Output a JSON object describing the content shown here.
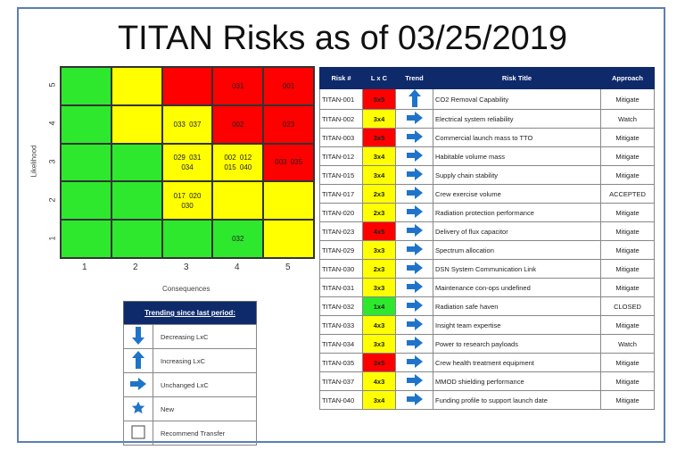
{
  "title": "TITAN Risks as of 03/25/2019",
  "colors": {
    "green": "#2de82d",
    "yellow": "#ffff00",
    "red": "#ff0000",
    "header": "#0e2a6b",
    "arrow": "#1f74c9"
  },
  "matrix": {
    "y_axis_title": "Likelihood",
    "x_axis_title": "Consequences",
    "y_labels": [
      "5",
      "4",
      "3",
      "2",
      "1"
    ],
    "x_labels": [
      "1",
      "2",
      "3",
      "4",
      "5"
    ],
    "rows": [
      [
        {
          "c": "g",
          "t": ""
        },
        {
          "c": "y",
          "t": ""
        },
        {
          "c": "r",
          "t": ""
        },
        {
          "c": "r",
          "t": "031"
        },
        {
          "c": "r",
          "t": "001"
        }
      ],
      [
        {
          "c": "g",
          "t": ""
        },
        {
          "c": "y",
          "t": ""
        },
        {
          "c": "y",
          "t": "033 037"
        },
        {
          "c": "r",
          "t": "002"
        },
        {
          "c": "r",
          "t": "023"
        }
      ],
      [
        {
          "c": "g",
          "t": ""
        },
        {
          "c": "g",
          "t": ""
        },
        {
          "c": "y",
          "t": "029 031 034"
        },
        {
          "c": "y",
          "t": "002 012 015 040"
        },
        {
          "c": "r",
          "t": "003 035"
        }
      ],
      [
        {
          "c": "g",
          "t": ""
        },
        {
          "c": "g",
          "t": ""
        },
        {
          "c": "y",
          "t": "017 020 030"
        },
        {
          "c": "y",
          "t": ""
        },
        {
          "c": "y",
          "t": ""
        }
      ],
      [
        {
          "c": "g",
          "t": ""
        },
        {
          "c": "g",
          "t": ""
        },
        {
          "c": "g",
          "t": ""
        },
        {
          "c": "g",
          "t": "032"
        },
        {
          "c": "y",
          "t": ""
        }
      ]
    ]
  },
  "table": {
    "headers": [
      "Risk #",
      "L x C",
      "Trend",
      "Risk Title",
      "Approach"
    ],
    "rows": [
      {
        "id": "TITAN-001",
        "lxc": "5x5",
        "color": "r",
        "trend": "up",
        "title": "CO2 Removal Capability",
        "approach": "Mitigate"
      },
      {
        "id": "TITAN-002",
        "lxc": "3x4",
        "color": "y",
        "trend": "right",
        "title": "Electrical system reliability",
        "approach": "Watch"
      },
      {
        "id": "TITAN-003",
        "lxc": "3x5",
        "color": "r",
        "trend": "right",
        "title": "Commercial launch mass to TTO",
        "approach": "Mitigate"
      },
      {
        "id": "TITAN-012",
        "lxc": "3x4",
        "color": "y",
        "trend": "right",
        "title": "Habitable volume mass",
        "approach": "Mitigate"
      },
      {
        "id": "TITAN-015",
        "lxc": "3x4",
        "color": "y",
        "trend": "right",
        "title": "Supply chain stability",
        "approach": "Mitigate"
      },
      {
        "id": "TITAN-017",
        "lxc": "2x3",
        "color": "y",
        "trend": "right",
        "title": "Crew exercise volume",
        "approach": "ACCEPTED"
      },
      {
        "id": "TITAN-020",
        "lxc": "2x3",
        "color": "y",
        "trend": "right",
        "title": "Radiation protection performance",
        "approach": "Mitigate"
      },
      {
        "id": "TITAN-023",
        "lxc": "4x5",
        "color": "r",
        "trend": "right",
        "title": "Delivery of flux capacitor",
        "approach": "Mitigate"
      },
      {
        "id": "TITAN-029",
        "lxc": "3x3",
        "color": "y",
        "trend": "right",
        "title": "Spectrum allocation",
        "approach": "Mitigate"
      },
      {
        "id": "TITAN-030",
        "lxc": "2x3",
        "color": "y",
        "trend": "right",
        "title": "DSN System Communication Link",
        "approach": "Mitigate"
      },
      {
        "id": "TITAN-031",
        "lxc": "3x3",
        "color": "y",
        "trend": "right",
        "title": "Maintenance con-ops undefined",
        "approach": "Mitigate"
      },
      {
        "id": "TITAN-032",
        "lxc": "1x4",
        "color": "g",
        "trend": "right",
        "title": "Radiation safe haven",
        "approach": "CLOSED"
      },
      {
        "id": "TITAN-033",
        "lxc": "4x3",
        "color": "y",
        "trend": "right",
        "title": "Insight team expertise",
        "approach": "Mitigate"
      },
      {
        "id": "TITAN-034",
        "lxc": "3x3",
        "color": "y",
        "trend": "right",
        "title": "Power to research payloads",
        "approach": "Watch"
      },
      {
        "id": "TITAN-035",
        "lxc": "3x5",
        "color": "r",
        "trend": "right",
        "title": "Crew health treatment equipment",
        "approach": "Mitigate"
      },
      {
        "id": "TITAN-037",
        "lxc": "4x3",
        "color": "y",
        "trend": "right",
        "title": "MMOD shielding performance",
        "approach": "Mitigate"
      },
      {
        "id": "TITAN-040",
        "lxc": "3x4",
        "color": "y",
        "trend": "right",
        "title": "Funding profile to support launch date",
        "approach": "Mitigate"
      }
    ]
  },
  "legend": {
    "title": "Trending since last period:",
    "items": [
      {
        "icon": "down",
        "label": "Decreasing LxC"
      },
      {
        "icon": "up",
        "label": "Increasing LxC"
      },
      {
        "icon": "right",
        "label": "Unchanged LxC"
      },
      {
        "icon": "star",
        "label": "New"
      },
      {
        "icon": "box",
        "label": "Recommend Transfer"
      }
    ]
  }
}
